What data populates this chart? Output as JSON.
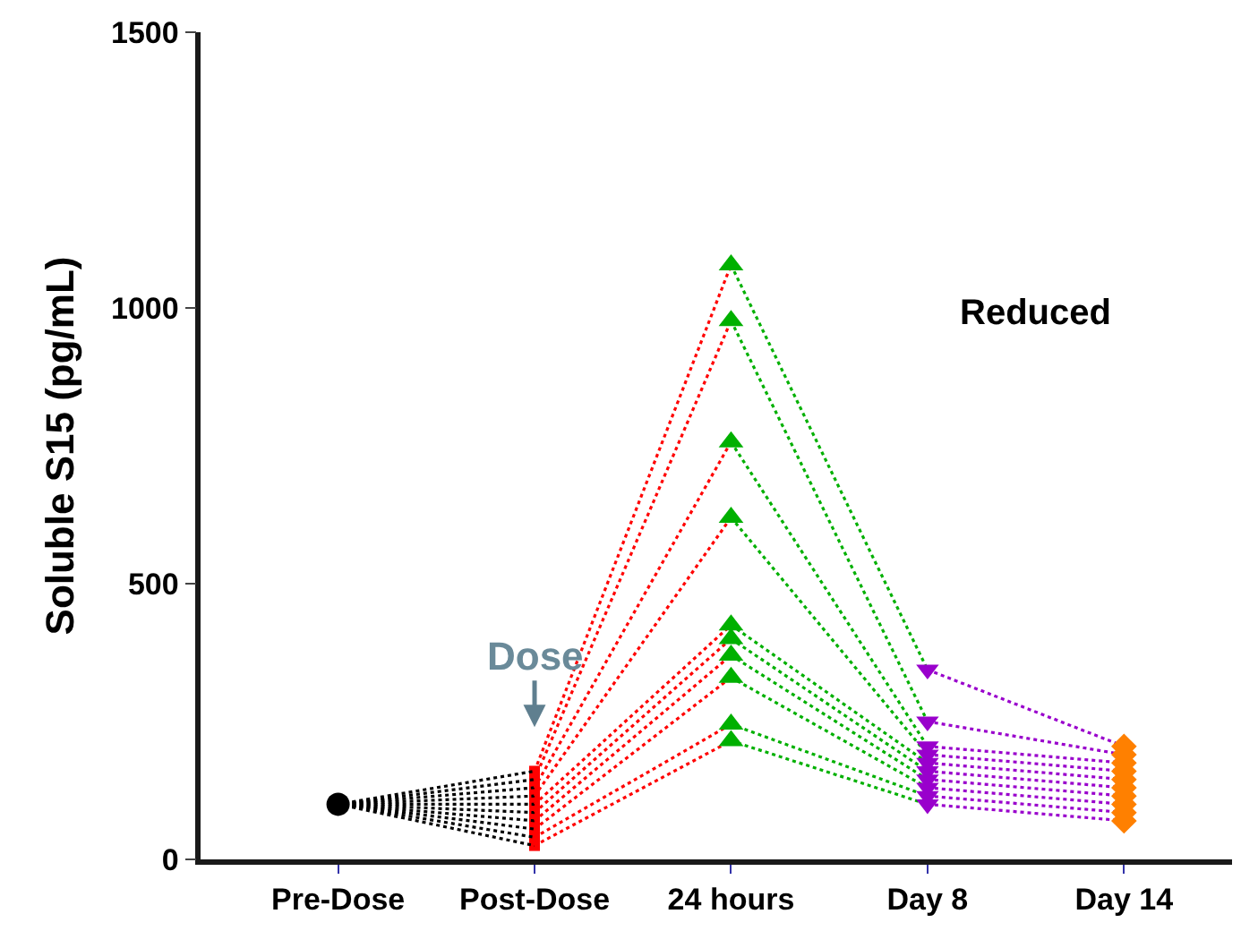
{
  "chart_data": {
    "type": "line",
    "ylabel": "Soluble S15 (pg/mL)",
    "categories": [
      "Pre-Dose",
      "Post-Dose",
      "24 hours",
      "Day 8",
      "Day 14"
    ],
    "ylim": [
      0,
      1500
    ],
    "yticks": [
      0,
      500,
      1000,
      1500
    ],
    "line_style": "dotted",
    "annotations": [
      "Reduced",
      "Dose"
    ],
    "series": [
      {
        "color": "#000000",
        "x": [
          "Pre-Dose",
          "Post-Dose"
        ],
        "values": [
          100,
          160
        ]
      },
      {
        "color": "#000000",
        "x": [
          "Pre-Dose",
          "Post-Dose"
        ],
        "values": [
          100,
          145
        ]
      },
      {
        "color": "#000000",
        "x": [
          "Pre-Dose",
          "Post-Dose"
        ],
        "values": [
          100,
          130
        ]
      },
      {
        "color": "#000000",
        "x": [
          "Pre-Dose",
          "Post-Dose"
        ],
        "values": [
          100,
          115
        ]
      },
      {
        "color": "#000000",
        "x": [
          "Pre-Dose",
          "Post-Dose"
        ],
        "values": [
          100,
          100
        ]
      },
      {
        "color": "#000000",
        "x": [
          "Pre-Dose",
          "Post-Dose"
        ],
        "values": [
          100,
          85
        ]
      },
      {
        "color": "#000000",
        "x": [
          "Pre-Dose",
          "Post-Dose"
        ],
        "values": [
          100,
          70
        ]
      },
      {
        "color": "#000000",
        "x": [
          "Pre-Dose",
          "Post-Dose"
        ],
        "values": [
          100,
          55
        ]
      },
      {
        "color": "#000000",
        "x": [
          "Pre-Dose",
          "Post-Dose"
        ],
        "values": [
          100,
          40
        ]
      },
      {
        "color": "#000000",
        "x": [
          "Pre-Dose",
          "Post-Dose"
        ],
        "values": [
          100,
          25
        ]
      },
      {
        "color": "#ff0000",
        "x": [
          "Post-Dose",
          "24 hours"
        ],
        "values": [
          160,
          1078
        ]
      },
      {
        "color": "#ff0000",
        "x": [
          "Post-Dose",
          "24 hours"
        ],
        "values": [
          145,
          977
        ]
      },
      {
        "color": "#ff0000",
        "x": [
          "Post-Dose",
          "24 hours"
        ],
        "values": [
          130,
          757
        ]
      },
      {
        "color": "#ff0000",
        "x": [
          "Post-Dose",
          "24 hours"
        ],
        "values": [
          115,
          620
        ]
      },
      {
        "color": "#ff0000",
        "x": [
          "Post-Dose",
          "24 hours"
        ],
        "values": [
          100,
          425
        ]
      },
      {
        "color": "#ff0000",
        "x": [
          "Post-Dose",
          "24 hours"
        ],
        "values": [
          85,
          400
        ]
      },
      {
        "color": "#ff0000",
        "x": [
          "Post-Dose",
          "24 hours"
        ],
        "values": [
          70,
          370
        ]
      },
      {
        "color": "#ff0000",
        "x": [
          "Post-Dose",
          "24 hours"
        ],
        "values": [
          55,
          330
        ]
      },
      {
        "color": "#ff0000",
        "x": [
          "Post-Dose",
          "24 hours"
        ],
        "values": [
          40,
          245
        ]
      },
      {
        "color": "#ff0000",
        "x": [
          "Post-Dose",
          "24 hours"
        ],
        "values": [
          25,
          215
        ]
      },
      {
        "color": "#00b000",
        "x": [
          "24 hours",
          "Day 8"
        ],
        "values": [
          1078,
          344
        ]
      },
      {
        "color": "#00b000",
        "x": [
          "24 hours",
          "Day 8"
        ],
        "values": [
          977,
          250
        ]
      },
      {
        "color": "#00b000",
        "x": [
          "24 hours",
          "Day 8"
        ],
        "values": [
          757,
          205
        ]
      },
      {
        "color": "#00b000",
        "x": [
          "24 hours",
          "Day 8"
        ],
        "values": [
          620,
          190
        ]
      },
      {
        "color": "#00b000",
        "x": [
          "24 hours",
          "Day 8"
        ],
        "values": [
          425,
          175
        ]
      },
      {
        "color": "#00b000",
        "x": [
          "24 hours",
          "Day 8"
        ],
        "values": [
          400,
          160
        ]
      },
      {
        "color": "#00b000",
        "x": [
          "24 hours",
          "Day 8"
        ],
        "values": [
          370,
          145
        ]
      },
      {
        "color": "#00b000",
        "x": [
          "24 hours",
          "Day 8"
        ],
        "values": [
          330,
          130
        ]
      },
      {
        "color": "#00b000",
        "x": [
          "24 hours",
          "Day 8"
        ],
        "values": [
          245,
          115
        ]
      },
      {
        "color": "#00b000",
        "x": [
          "24 hours",
          "Day 8"
        ],
        "values": [
          215,
          100
        ]
      },
      {
        "color": "#9900cc",
        "x": [
          "Day 8",
          "Day 14"
        ],
        "values": [
          344,
          205
        ]
      },
      {
        "color": "#9900cc",
        "x": [
          "Day 8",
          "Day 14"
        ],
        "values": [
          250,
          190
        ]
      },
      {
        "color": "#9900cc",
        "x": [
          "Day 8",
          "Day 14"
        ],
        "values": [
          205,
          175
        ]
      },
      {
        "color": "#9900cc",
        "x": [
          "Day 8",
          "Day 14"
        ],
        "values": [
          190,
          160
        ]
      },
      {
        "color": "#9900cc",
        "x": [
          "Day 8",
          "Day 14"
        ],
        "values": [
          175,
          145
        ]
      },
      {
        "color": "#9900cc",
        "x": [
          "Day 8",
          "Day 14"
        ],
        "values": [
          160,
          130
        ]
      },
      {
        "color": "#9900cc",
        "x": [
          "Day 8",
          "Day 14"
        ],
        "values": [
          145,
          115
        ]
      },
      {
        "color": "#9900cc",
        "x": [
          "Day 8",
          "Day 14"
        ],
        "values": [
          130,
          100
        ]
      },
      {
        "color": "#9900cc",
        "x": [
          "Day 8",
          "Day 14"
        ],
        "values": [
          115,
          85
        ]
      },
      {
        "color": "#9900cc",
        "x": [
          "Day 8",
          "Day 14"
        ],
        "values": [
          100,
          70
        ]
      },
      {
        "type": "scatter",
        "marker": "circle",
        "color": "#000000",
        "x": [
          "Pre-Dose"
        ],
        "values": [
          100
        ]
      },
      {
        "type": "scatter",
        "marker": "square",
        "color": "#ff0000",
        "x": [
          "Post-Dose",
          "Post-Dose",
          "Post-Dose",
          "Post-Dose",
          "Post-Dose",
          "Post-Dose",
          "Post-Dose",
          "Post-Dose",
          "Post-Dose",
          "Post-Dose"
        ],
        "values": [
          160,
          145,
          130,
          115,
          100,
          85,
          70,
          55,
          40,
          25
        ]
      },
      {
        "type": "scatter",
        "marker": "triangle",
        "color": "#00b000",
        "x": [
          "24 hours",
          "24 hours",
          "24 hours",
          "24 hours",
          "24 hours",
          "24 hours",
          "24 hours",
          "24 hours",
          "24 hours",
          "24 hours"
        ],
        "values": [
          1078,
          977,
          757,
          620,
          425,
          400,
          370,
          330,
          245,
          215
        ]
      },
      {
        "type": "scatter",
        "marker": "triangle-down",
        "color": "#9900cc",
        "x": [
          "Day 8",
          "Day 8",
          "Day 8",
          "Day 8",
          "Day 8",
          "Day 8",
          "Day 8",
          "Day 8",
          "Day 8",
          "Day 8"
        ],
        "values": [
          344,
          250,
          205,
          190,
          175,
          160,
          145,
          130,
          115,
          100
        ]
      },
      {
        "type": "scatter",
        "marker": "diamond",
        "color": "#ff8000",
        "x": [
          "Day 14",
          "Day 14",
          "Day 14",
          "Day 14",
          "Day 14",
          "Day 14",
          "Day 14",
          "Day 14",
          "Day 14",
          "Day 14"
        ],
        "values": [
          205,
          190,
          175,
          160,
          145,
          130,
          115,
          100,
          85,
          70
        ]
      }
    ]
  }
}
